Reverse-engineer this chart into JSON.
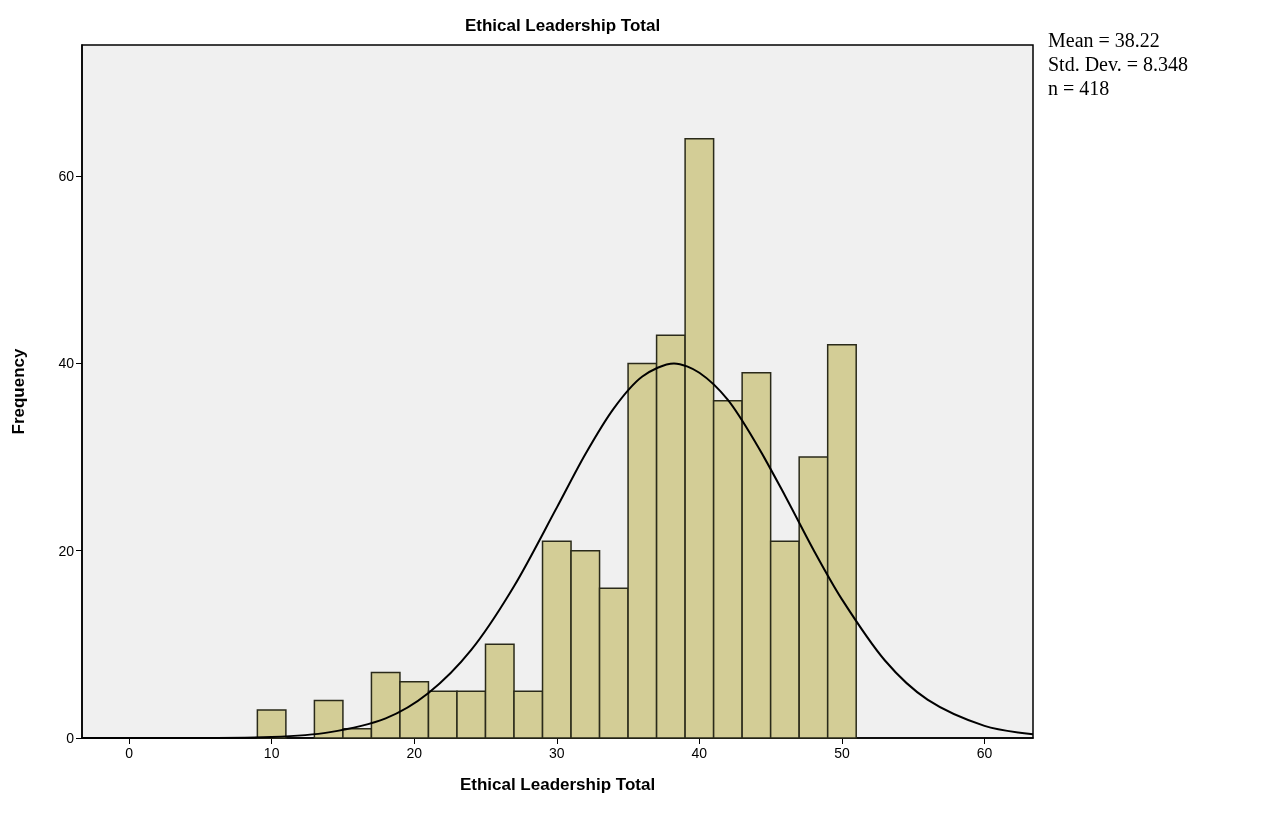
{
  "chart_data": {
    "type": "histogram",
    "title": "Ethical Leadership Total",
    "xlabel": "Ethical Leadership Total",
    "ylabel": "Frequency",
    "annotations": [
      "Mean = 38.22",
      "Std. Dev. = 8.348",
      "n = 418"
    ],
    "bins": [
      9,
      11,
      13,
      15,
      17,
      19,
      21,
      23,
      25,
      27,
      29,
      31,
      33,
      35,
      37,
      39,
      41,
      43,
      45,
      47,
      49,
      51
    ],
    "values": [
      3,
      0,
      4,
      1,
      7,
      6,
      5,
      5,
      10,
      5,
      21,
      20,
      16,
      40,
      43,
      64,
      36,
      39,
      21,
      30,
      42
    ],
    "color": "#d3cd96",
    "series": [
      {
        "type": "line",
        "color": "#000000",
        "marker": "none",
        "x": [
          -3.3,
          0,
          5,
          10,
          14,
          18,
          21,
          24,
          27,
          30,
          32,
          34,
          36,
          38.22,
          40,
          42,
          44,
          46,
          48,
          50,
          53,
          56,
          60,
          63.4
        ],
        "values": [
          0,
          0,
          0,
          0.1,
          0.6,
          2.1,
          4.8,
          9.4,
          16.2,
          24.6,
          30.3,
          35.2,
          38.6,
          40,
          39,
          36.1,
          31.4,
          25.9,
          20.1,
          14.8,
          8.3,
          4.1,
          1.3,
          0.4
        ]
      }
    ],
    "xlim": [
      -3.3,
      63.4
    ],
    "xticks": [
      0,
      10,
      20,
      30,
      40,
      50,
      60
    ],
    "ylim": [
      0,
      74
    ],
    "yticks": [
      0,
      20,
      40,
      60
    ],
    "grid": false
  }
}
